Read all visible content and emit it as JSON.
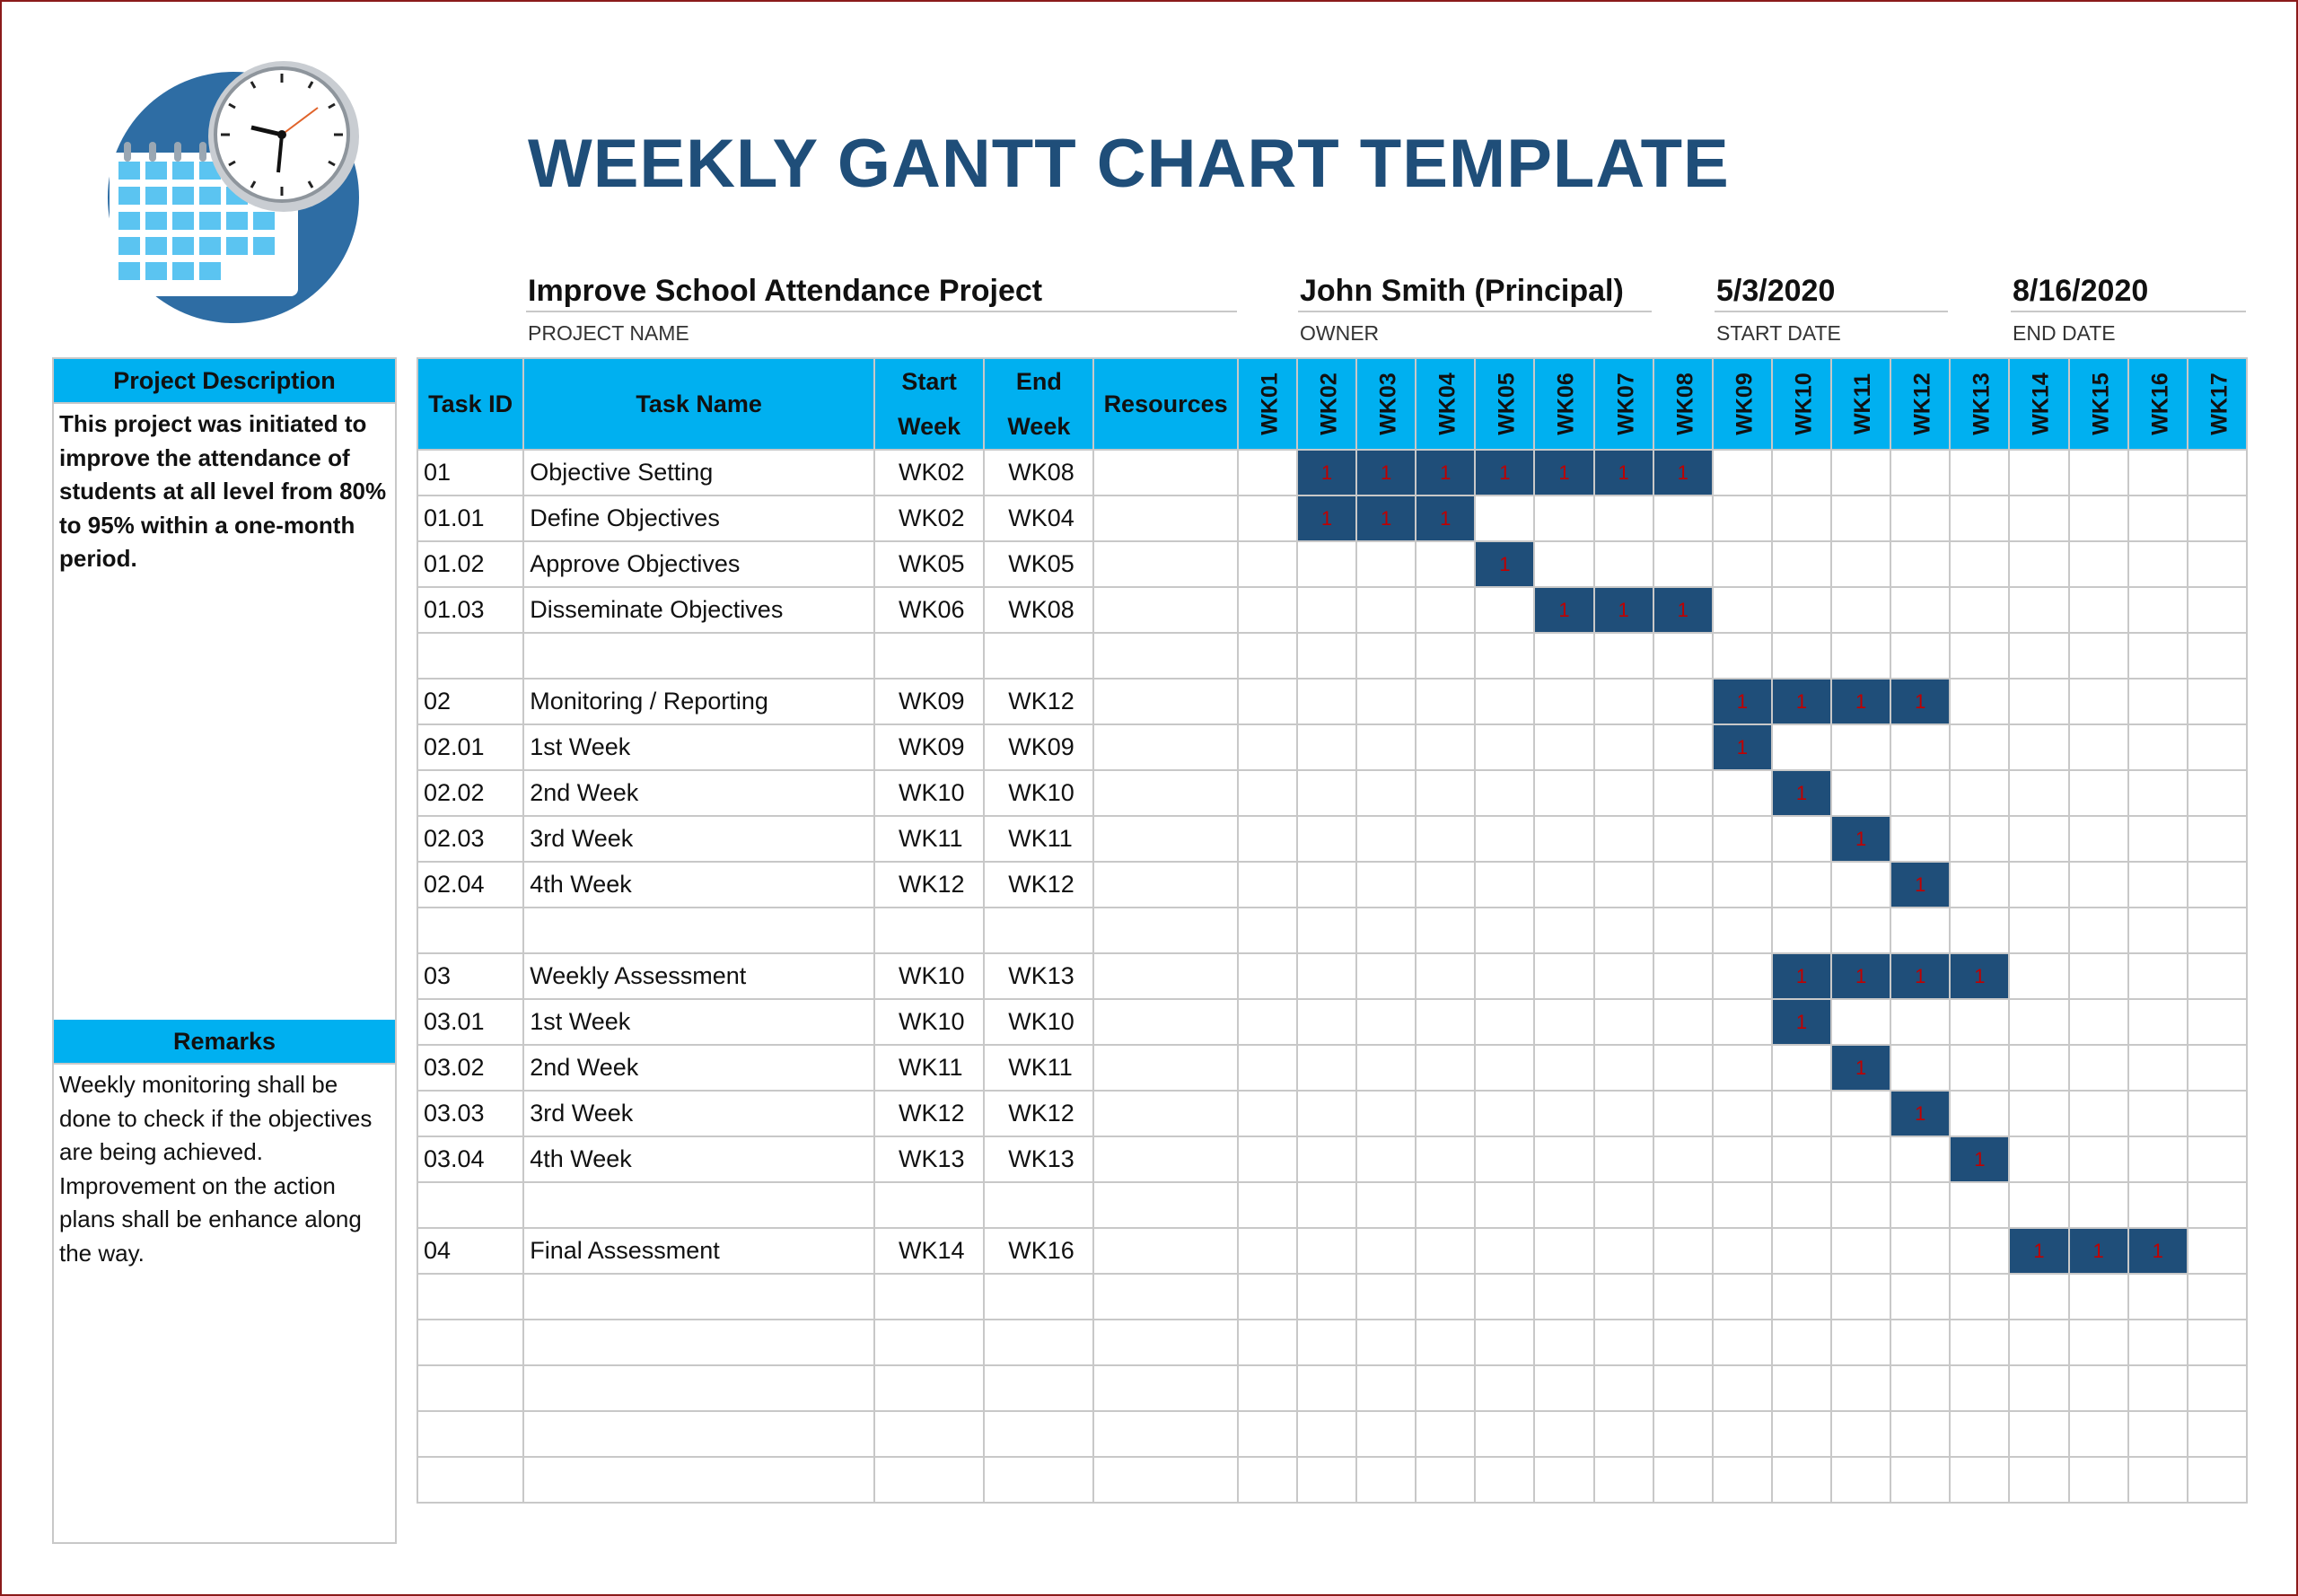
{
  "title": "WEEKLY GANTT CHART TEMPLATE",
  "project": {
    "value": "Improve School Attendance Project",
    "caption": "PROJECT NAME"
  },
  "owner": {
    "value": "John Smith (Principal)",
    "caption": "OWNER"
  },
  "start_date": {
    "value": "5/3/2020",
    "caption": "START DATE"
  },
  "end_date": {
    "value": "8/16/2020",
    "caption": "END DATE"
  },
  "description": {
    "heading": "Project Description",
    "text": "This project was initiated to improve the attendance of students at all level from 80% to 95% within a one-month period."
  },
  "remarks": {
    "heading": "Remarks",
    "text": "Weekly monitoring shall be done to check if the objectives are being achieved. Improvement on the action plans shall be enhance along the way."
  },
  "table": {
    "headers": {
      "task_id": "Task ID",
      "task_name": "Task Name",
      "start_week_1": "Start",
      "start_week_2": "Week",
      "end_week_1": "End",
      "end_week_2": "Week",
      "resources": "Resources"
    },
    "weeks": [
      "WK01",
      "WK02",
      "WK03",
      "WK04",
      "WK05",
      "WK06",
      "WK07",
      "WK08",
      "WK09",
      "WK10",
      "WK11",
      "WK12",
      "WK13",
      "WK14",
      "WK15",
      "WK16",
      "WK17"
    ],
    "marker": "1",
    "rows": [
      {
        "id": "01",
        "name": "Objective Setting",
        "start": "WK02",
        "end": "WK08",
        "resources": "",
        "s": 2,
        "e": 8
      },
      {
        "id": "01.01",
        "name": "Define Objectives",
        "start": "WK02",
        "end": "WK04",
        "resources": "",
        "s": 2,
        "e": 4
      },
      {
        "id": "01.02",
        "name": "Approve Objectives",
        "start": "WK05",
        "end": "WK05",
        "resources": "",
        "s": 5,
        "e": 5
      },
      {
        "id": "01.03",
        "name": "Disseminate Objectives",
        "start": "WK06",
        "end": "WK08",
        "resources": "",
        "s": 6,
        "e": 8
      },
      {
        "id": "",
        "name": "",
        "start": "",
        "end": "",
        "resources": "",
        "s": 0,
        "e": 0
      },
      {
        "id": "02",
        "name": "Monitoring / Reporting",
        "start": "WK09",
        "end": "WK12",
        "resources": "",
        "s": 9,
        "e": 12
      },
      {
        "id": "02.01",
        "name": "1st Week",
        "start": "WK09",
        "end": "WK09",
        "resources": "",
        "s": 9,
        "e": 9
      },
      {
        "id": "02.02",
        "name": "2nd Week",
        "start": "WK10",
        "end": "WK10",
        "resources": "",
        "s": 10,
        "e": 10
      },
      {
        "id": "02.03",
        "name": "3rd Week",
        "start": "WK11",
        "end": "WK11",
        "resources": "",
        "s": 11,
        "e": 11
      },
      {
        "id": "02.04",
        "name": "4th Week",
        "start": "WK12",
        "end": "WK12",
        "resources": "",
        "s": 12,
        "e": 12
      },
      {
        "id": "",
        "name": "",
        "start": "",
        "end": "",
        "resources": "",
        "s": 0,
        "e": 0
      },
      {
        "id": "03",
        "name": "Weekly Assessment",
        "start": "WK10",
        "end": "WK13",
        "resources": "",
        "s": 10,
        "e": 13
      },
      {
        "id": "03.01",
        "name": "1st Week",
        "start": "WK10",
        "end": "WK10",
        "resources": "",
        "s": 10,
        "e": 10
      },
      {
        "id": "03.02",
        "name": "2nd Week",
        "start": "WK11",
        "end": "WK11",
        "resources": "",
        "s": 11,
        "e": 11
      },
      {
        "id": "03.03",
        "name": "3rd Week",
        "start": "WK12",
        "end": "WK12",
        "resources": "",
        "s": 12,
        "e": 12
      },
      {
        "id": "03.04",
        "name": "4th Week",
        "start": "WK13",
        "end": "WK13",
        "resources": "",
        "s": 13,
        "e": 13
      },
      {
        "id": "",
        "name": "",
        "start": "",
        "end": "",
        "resources": "",
        "s": 0,
        "e": 0
      },
      {
        "id": "04",
        "name": "Final Assessment",
        "start": "WK14",
        "end": "WK16",
        "resources": "",
        "s": 14,
        "e": 16
      },
      {
        "id": "",
        "name": "",
        "start": "",
        "end": "",
        "resources": "",
        "s": 0,
        "e": 0
      },
      {
        "id": "",
        "name": "",
        "start": "",
        "end": "",
        "resources": "",
        "s": 0,
        "e": 0
      },
      {
        "id": "",
        "name": "",
        "start": "",
        "end": "",
        "resources": "",
        "s": 0,
        "e": 0
      },
      {
        "id": "",
        "name": "",
        "start": "",
        "end": "",
        "resources": "",
        "s": 0,
        "e": 0
      },
      {
        "id": "",
        "name": "",
        "start": "",
        "end": "",
        "resources": "",
        "s": 0,
        "e": 0
      }
    ]
  },
  "colors": {
    "header_blue": "#00b0f0",
    "bar_navy": "#1f4e79",
    "marker_red": "#c00000",
    "title_blue": "#1f4e79"
  }
}
